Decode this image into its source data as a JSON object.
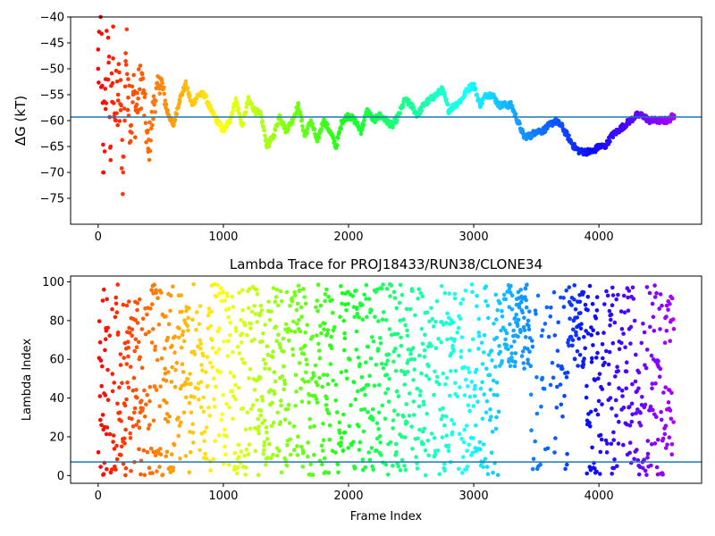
{
  "chart_data": [
    {
      "type": "scatter",
      "title": "",
      "xlabel": "",
      "ylabel": "ΔG (kT)",
      "xlim": [
        -220,
        4820
      ],
      "ylim": [
        -80,
        -40
      ],
      "xticks": [
        0,
        1000,
        2000,
        3000,
        4000
      ],
      "yticks": [
        -75,
        -70,
        -65,
        -60,
        -55,
        -50,
        -45,
        -40
      ],
      "ytick_labels": [
        "−75",
        "−70",
        "−65",
        "−60",
        "−55",
        "−50",
        "−45",
        "−40"
      ],
      "hline": -59.3,
      "hline_color": "#1f77b4",
      "colormap": "rainbow (reversed: red at start, violet at end)",
      "grid": false,
      "series": [
        {
          "x": [
            0,
            20,
            40,
            60,
            80,
            100,
            120,
            140,
            160,
            180,
            200,
            220,
            240,
            260,
            280,
            300,
            350,
            400,
            450,
            500,
            550,
            600,
            650,
            700,
            750,
            800,
            850,
            900,
            950,
            1000,
            1050,
            1100,
            1150,
            1200,
            1250,
            1300,
            1350,
            1400,
            1450,
            1500,
            1550,
            1600,
            1650,
            1700,
            1750,
            1800,
            1850,
            1900,
            1950,
            2000,
            2050,
            2100,
            2150,
            2200,
            2250,
            2300,
            2350,
            2400,
            2450,
            2500,
            2550,
            2600,
            2650,
            2700,
            2750,
            2800,
            2850,
            2900,
            2950,
            3000,
            3050,
            3100,
            3150,
            3200,
            3250,
            3300,
            3350,
            3400,
            3450,
            3500,
            3550,
            3600,
            3650,
            3700,
            3750,
            3800,
            3850,
            3900,
            3950,
            4000,
            4050,
            4100,
            4150,
            4200,
            4250,
            4300,
            4350,
            4400,
            4450,
            4500,
            4550,
            4600
          ],
          "y": [
            -50,
            -40,
            -70,
            -52,
            -44,
            -65,
            -48,
            -60,
            -55,
            -58,
            -70,
            -47,
            -52,
            -61,
            -55,
            -58,
            -52,
            -66,
            -56,
            -52,
            -58,
            -61,
            -56,
            -53,
            -57,
            -55,
            -55,
            -58,
            -60,
            -62,
            -60,
            -56,
            -61,
            -56,
            -58,
            -59,
            -65,
            -63,
            -59,
            -62,
            -60,
            -57,
            -63,
            -60,
            -64,
            -60,
            -62,
            -65,
            -60,
            -59,
            -60,
            -62,
            -58,
            -60,
            -59,
            -60,
            -61,
            -59,
            -56,
            -57,
            -59,
            -57,
            -56,
            -55,
            -54,
            -58,
            -57,
            -56,
            -54,
            -53,
            -57,
            -55,
            -55,
            -57,
            -57,
            -57,
            -60,
            -63,
            -63,
            -62,
            -62,
            -61,
            -60,
            -61,
            -63,
            -65,
            -66,
            -66,
            -66,
            -65,
            -65,
            -63,
            -62,
            -61,
            -60,
            -59,
            -59,
            -60,
            -60,
            -60,
            -60,
            -59
          ]
        }
      ]
    },
    {
      "type": "scatter",
      "title": "Lambda Trace for PROJ18433/RUN38/CLONE34",
      "xlabel": "Frame Index",
      "ylabel": "Lambda Index",
      "xlim": [
        -220,
        4820
      ],
      "ylim": [
        -4,
        103
      ],
      "xticks": [
        0,
        1000,
        2000,
        3000,
        4000
      ],
      "yticks": [
        0,
        20,
        40,
        60,
        80,
        100
      ],
      "hline": 7,
      "hline_color": "#1f77b4",
      "colormap": "rainbow (reversed: red at start, violet at end)",
      "grid": false,
      "series": [
        {
          "x_range": [
            0,
            4600
          ],
          "y_range": [
            0,
            99
          ],
          "n_points": 4600
        }
      ]
    }
  ]
}
